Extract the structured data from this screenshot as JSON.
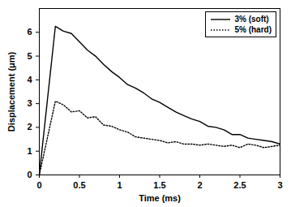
{
  "chart_data": {
    "type": "line",
    "x_label": "Time (ms)",
    "y_label": "Displacement (μm)",
    "x": [
      0,
      0.2,
      0.3,
      0.4,
      0.5,
      0.6,
      0.7,
      0.8,
      0.9,
      1.0,
      1.1,
      1.2,
      1.3,
      1.4,
      1.5,
      1.6,
      1.7,
      1.8,
      1.9,
      2.0,
      2.1,
      2.2,
      2.3,
      2.4,
      2.5,
      2.6,
      2.7,
      2.8,
      2.9,
      3.0
    ],
    "series": [
      {
        "name": "3% (soft)",
        "color": "#000000",
        "line_style": "solid",
        "values": [
          0,
          6.25,
          6.05,
          5.95,
          5.6,
          5.25,
          5.0,
          4.65,
          4.35,
          4.1,
          3.8,
          3.65,
          3.45,
          3.2,
          3.05,
          2.85,
          2.65,
          2.5,
          2.35,
          2.25,
          2.05,
          2.0,
          1.9,
          1.7,
          1.7,
          1.55,
          1.5,
          1.45,
          1.4,
          1.3
        ]
      },
      {
        "name": "5% (hard)",
        "color": "#000000",
        "line_style": "dotted",
        "values": [
          0,
          3.1,
          2.95,
          2.65,
          2.7,
          2.4,
          2.45,
          2.1,
          2.05,
          1.9,
          1.8,
          1.6,
          1.55,
          1.5,
          1.45,
          1.35,
          1.4,
          1.3,
          1.3,
          1.25,
          1.3,
          1.25,
          1.2,
          1.25,
          1.15,
          1.3,
          1.25,
          1.15,
          1.2,
          1.25
        ]
      }
    ],
    "xlim": [
      0,
      3
    ],
    "xticks": [
      0,
      0.5,
      1,
      1.5,
      2,
      2.5,
      3
    ],
    "ylim": [
      0,
      7
    ],
    "yticks": [
      0,
      1,
      2,
      3,
      4,
      5,
      6
    ],
    "legend": "upper right",
    "grid": false
  }
}
